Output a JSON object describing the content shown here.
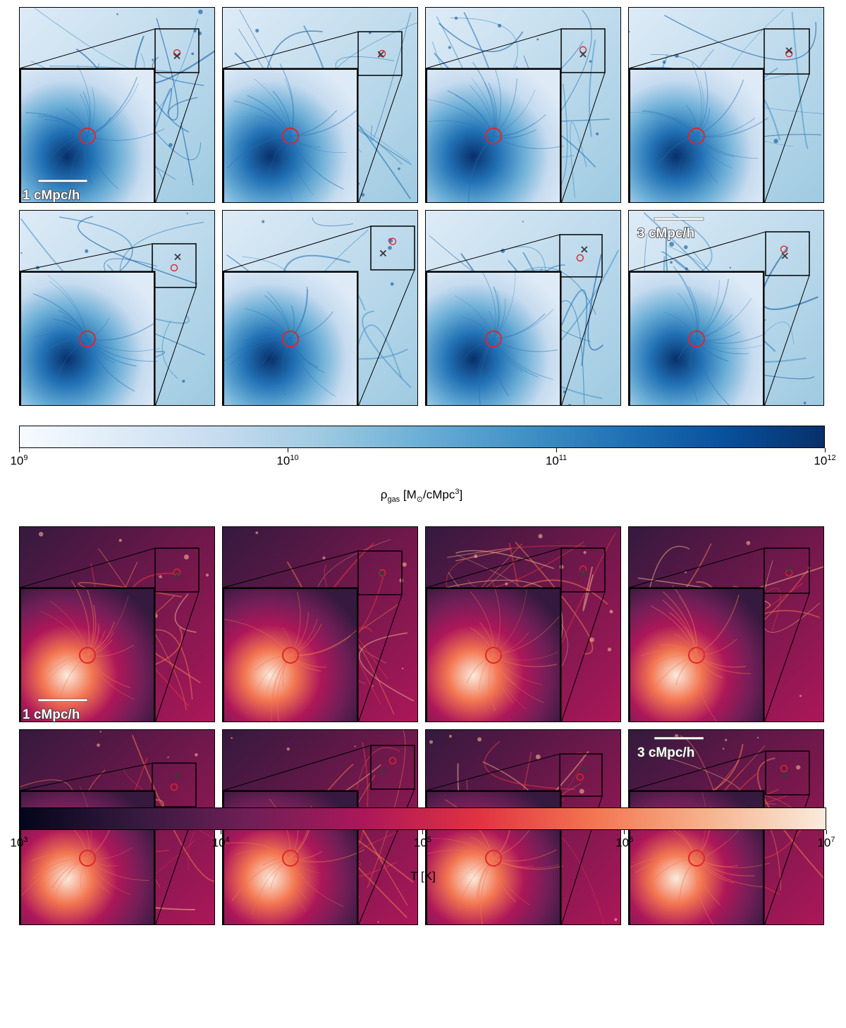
{
  "figure": {
    "top_block": {
      "colormap": "Blues",
      "cmap_stops": [
        "#f7fbff",
        "#deebf7",
        "#c6dbef",
        "#9ecae1",
        "#6baed6",
        "#4292c6",
        "#2171b5",
        "#08519c",
        "#08306b"
      ],
      "scalebar_inset_label": "1 cMpc/h",
      "scalebar_main_label": "3 cMpc/h",
      "colorbar": {
        "scale": "log",
        "range": [
          1000000000,
          1000000000000
        ],
        "ticks": [
          {
            "base": "10",
            "exp": "9"
          },
          {
            "base": "10",
            "exp": "10"
          },
          {
            "base": "10",
            "exp": "11"
          },
          {
            "base": "10",
            "exp": "12"
          }
        ],
        "label_main": "ρ",
        "label_sub": "gas",
        "label_units_a": " [M",
        "label_units_sub": "⊙",
        "label_units_b": "/cMpc",
        "label_units_sup": "3",
        "label_units_c": "]"
      }
    },
    "bottom_block": {
      "colormap": "rocket",
      "cmap_stops": [
        "#03051a",
        "#35193e",
        "#701f57",
        "#ad1759",
        "#e13342",
        "#f37651",
        "#f6b48f",
        "#faebdd"
      ],
      "scalebar_inset_label": "1 cMpc/h",
      "scalebar_main_label": "3 cMpc/h",
      "colorbar": {
        "scale": "log",
        "range": [
          1000,
          10000000
        ],
        "ticks": [
          {
            "base": "10",
            "exp": "3"
          },
          {
            "base": "10",
            "exp": "4"
          },
          {
            "base": "10",
            "exp": "5"
          },
          {
            "base": "10",
            "exp": "6"
          },
          {
            "base": "10",
            "exp": "7"
          }
        ],
        "label": "T [K]"
      }
    },
    "marker_colors": {
      "circle": "#e0262b",
      "cross": "#3a3a3a"
    },
    "panels_per_block": 8
  }
}
